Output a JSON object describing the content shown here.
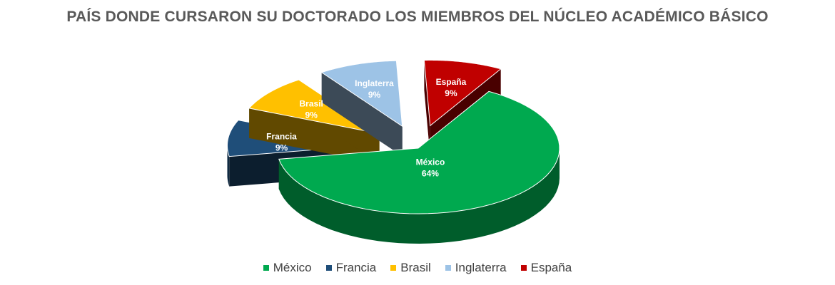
{
  "chart_data": {
    "type": "pie",
    "title": "PAÍS DONDE CURSARON SU DOCTORADO LOS MIEMBROS DEL NÚCLEO ACADÉMICO BÁSICO",
    "categories": [
      "México",
      "Francia",
      "Brasil",
      "Inglaterra",
      "España"
    ],
    "values": [
      64,
      9,
      9,
      9,
      9
    ],
    "labels": [
      "64%",
      "9%",
      "9%",
      "9%",
      "9%"
    ],
    "colors": [
      "#00A94F",
      "#1F4E79",
      "#FFC000",
      "#9DC3E6",
      "#C00000"
    ],
    "exploded": [
      false,
      true,
      true,
      true,
      true
    ],
    "legend_position": "bottom",
    "style": "3d-exploded-pie"
  }
}
